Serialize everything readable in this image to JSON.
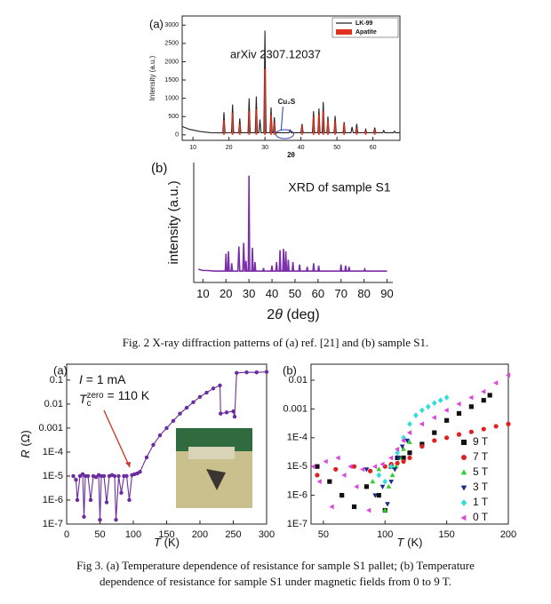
{
  "chart_data": [
    {
      "type": "line",
      "panel_label": "(a)",
      "annotation": "arXiv 2307.12037",
      "peak_label": "Cu₂S",
      "x_label": "2θ",
      "y_label": "Intensity (a.u.)",
      "xlim": [
        7,
        67.5
      ],
      "ylim": [
        -150,
        3250
      ],
      "xticks": [
        10,
        20,
        30,
        40,
        50,
        60
      ],
      "yticks": [
        0,
        500,
        1000,
        1500,
        2000,
        2500,
        3000
      ],
      "legend": "upper right",
      "series": [
        {
          "name": "LK-99",
          "color": "#222222",
          "mark": "line",
          "x": [
            7,
            9,
            12,
            15,
            18.3,
            18.6,
            18.9,
            20.7,
            21,
            21.3,
            22.7,
            23,
            23.3,
            25.3,
            25.6,
            25.9,
            27.3,
            27.6,
            27.9,
            28.3,
            28.6,
            28.9,
            29.7,
            30,
            30.3,
            31.4,
            31.7,
            32,
            32.3,
            32.6,
            32.9,
            36.7,
            37,
            37.3,
            40,
            40.3,
            40.6,
            43.2,
            43.5,
            43.8,
            44.7,
            45,
            45.3,
            45.9,
            46.2,
            46.5,
            47.2,
            47.5,
            47.8,
            49.2,
            49.5,
            49.8,
            51.7,
            52,
            52.3,
            53.9,
            54.2,
            54.5,
            55.2,
            55.5,
            55.8,
            57.7,
            58,
            58.3,
            60.2,
            60.5,
            60.8,
            62.7,
            63,
            63.3,
            65.7,
            66,
            66.3,
            67.5
          ],
          "values": [
            230,
            150,
            90,
            60,
            55,
            620,
            55,
            60,
            830,
            60,
            60,
            450,
            60,
            60,
            1000,
            60,
            60,
            1050,
            60,
            60,
            420,
            60,
            60,
            2850,
            60,
            60,
            750,
            60,
            60,
            480,
            60,
            60,
            130,
            60,
            60,
            300,
            60,
            60,
            650,
            60,
            60,
            720,
            60,
            60,
            900,
            60,
            60,
            500,
            60,
            60,
            520,
            60,
            60,
            350,
            60,
            60,
            220,
            60,
            60,
            300,
            60,
            60,
            150,
            60,
            60,
            200,
            60,
            60,
            120,
            60,
            60,
            100,
            60,
            60
          ]
        },
        {
          "name": "Apatite",
          "color": "#e0301e",
          "mark": "stem",
          "x": [
            18.6,
            21,
            23,
            25.6,
            27.6,
            30,
            31.7,
            32.6,
            40.3,
            43.5,
            45,
            46.2,
            47.5,
            49.5,
            52,
            55.5,
            58,
            60.5
          ],
          "values": [
            400,
            600,
            300,
            650,
            700,
            1800,
            550,
            350,
            250,
            500,
            550,
            650,
            400,
            380,
            280,
            200,
            120,
            150
          ]
        }
      ]
    },
    {
      "type": "line",
      "panel_label": "(b)",
      "annotation": "XRD of sample S1",
      "x_label": {
        "prefix": "2",
        "symbol": "θ",
        "rest": " (deg)"
      },
      "y_label": "intensity (a.u.)",
      "xlim": [
        6,
        92.5
      ],
      "ylim": [
        0,
        100
      ],
      "xticks": [
        10,
        20,
        30,
        40,
        50,
        60,
        70,
        80,
        90
      ],
      "series": [
        {
          "color": "#7b2fa8",
          "mark": "line",
          "x": [
            8,
            10,
            12,
            15,
            18,
            19.7,
            20,
            20.3,
            20.8,
            21.1,
            21.4,
            22.2,
            22.5,
            22.8,
            25.2,
            25.6,
            26,
            27.3,
            27.7,
            28.1,
            28.4,
            28.7,
            29,
            29.7,
            30,
            30.3,
            31.2,
            31.5,
            31.8,
            32.3,
            32.6,
            32.9,
            36,
            36.3,
            36.6,
            39.7,
            40,
            40.3,
            41.7,
            42,
            42.3,
            43.2,
            43.5,
            43.8,
            44.7,
            45,
            45.3,
            45.7,
            46,
            46.3,
            46.8,
            47.1,
            47.4,
            48.8,
            49.1,
            49.4,
            51.7,
            52,
            52.3,
            55,
            55.3,
            55.6,
            57.8,
            58.1,
            58.4,
            60,
            60.3,
            60.6,
            69.7,
            70,
            70.3,
            71.7,
            72,
            72.3,
            73.2,
            73.5,
            73.8,
            80,
            80.3,
            80.6,
            90
          ],
          "values": [
            11,
            10,
            10,
            9.5,
            9.5,
            9.5,
            24,
            9.5,
            9.5,
            26,
            9.5,
            9.5,
            16,
            9.5,
            9.5,
            30,
            9.5,
            9.5,
            33,
            9.5,
            9.5,
            18,
            9.5,
            9.5,
            89,
            9.5,
            9.5,
            29,
            9.5,
            9.5,
            17,
            9.5,
            9.5,
            12,
            9.5,
            9.5,
            14,
            9.5,
            9.5,
            17,
            9.5,
            9.5,
            27,
            9.5,
            9.5,
            28,
            9.5,
            9.5,
            26,
            9.5,
            9.5,
            19,
            9.5,
            9.5,
            17,
            9.5,
            9.5,
            15,
            9.5,
            9.5,
            13,
            9.5,
            9.5,
            16,
            9.5,
            9.5,
            14,
            9.5,
            9.5,
            15,
            9.5,
            9.5,
            14,
            9.5,
            9.5,
            13,
            9.5,
            9.5,
            11,
            9.5,
            9.5
          ]
        }
      ]
    },
    {
      "type": "line",
      "panel_label": "(a)",
      "ylog": true,
      "current": {
        "symbol": "I",
        "rest": " = 1 mA"
      },
      "tc": {
        "symbol": "T",
        "sub": "c",
        "sup": "zero",
        "rest": " = 110 K"
      },
      "x_label": {
        "symbol": "T",
        "rest": " (K)"
      },
      "y_label": {
        "symbol": "R",
        "rest": " (Ω)"
      },
      "xlim": [
        0,
        300
      ],
      "ylim": [
        1e-07,
        0.46
      ],
      "xticks": [
        0,
        50,
        100,
        150,
        200,
        250,
        300
      ],
      "yticks": [
        0.1,
        0.01,
        0.001,
        {
          "value": 0.0001,
          "label": "1E-4"
        },
        {
          "value": 1e-05,
          "label": "1E-5"
        },
        {
          "value": 1e-06,
          "label": "1E-6"
        },
        {
          "value": 1e-07,
          "label": "1E-7"
        }
      ],
      "series": [
        {
          "color": "#6a2ca0",
          "mark": "line+points",
          "marker": "circle",
          "x": [
            10,
            14,
            16,
            20,
            24,
            26,
            28,
            32,
            36,
            40,
            44,
            48,
            50,
            52,
            56,
            60,
            64,
            68,
            72,
            74,
            78,
            82,
            86,
            90,
            94,
            98,
            102,
            106,
            110,
            120,
            130,
            140,
            150,
            160,
            170,
            180,
            190,
            200,
            210,
            220,
            230,
            231,
            240,
            250,
            252,
            255,
            270,
            285,
            300
          ],
          "values": [
            1e-05,
            7e-06,
            1e-06,
            1e-05,
            1.2e-05,
            2e-07,
            1e-05,
            1e-05,
            1e-06,
            1e-05,
            9e-06,
            1.1e-05,
            1.5e-07,
            1e-05,
            1e-05,
            8e-07,
            1e-05,
            1.1e-05,
            1e-05,
            1.5e-07,
            1e-05,
            2e-06,
            1e-05,
            1e-05,
            1e-06,
            1.1e-05,
            1.2e-05,
            1.3e-05,
            1.5e-05,
            6e-05,
            0.0002,
            0.0005,
            0.001,
            0.002,
            0.004,
            0.007,
            0.012,
            0.02,
            0.03,
            0.045,
            0.06,
            0.004,
            0.0045,
            0.005,
            0.003,
            0.2,
            0.21,
            0.21,
            0.22
          ]
        }
      ]
    },
    {
      "type": "scatter",
      "panel_label": "(b)",
      "ylog": true,
      "legend": "center right",
      "x_label": {
        "symbol": "T",
        "rest": " (K)"
      },
      "xlim": [
        40,
        200
      ],
      "ylim": [
        1e-07,
        0.036
      ],
      "xticks": [
        50,
        100,
        150,
        200
      ],
      "yticks": [
        0.01,
        0.001,
        {
          "value": 0.0001,
          "label": "1E-4"
        },
        {
          "value": 1e-05,
          "label": "1E-5"
        },
        {
          "value": 1e-06,
          "label": "1E-6"
        },
        {
          "value": 1e-07,
          "label": "1E-7"
        }
      ],
      "series": [
        {
          "name": "9 T",
          "color": "#111111",
          "marker": "square",
          "x": [
            45,
            55,
            65,
            75,
            85,
            95,
            100,
            105,
            110,
            115,
            120,
            130,
            140,
            150,
            160,
            170,
            180,
            185
          ],
          "values": [
            1e-05,
            3e-06,
            1e-06,
            4e-07,
            2e-06,
            1e-06,
            3e-07,
            1e-05,
            2e-05,
            2e-05,
            3e-05,
            6e-05,
            0.00015,
            0.0004,
            0.0007,
            0.0012,
            0.002,
            0.003
          ]
        },
        {
          "name": "7 T",
          "color": "#e02020",
          "marker": "circle",
          "x": [
            45,
            60,
            75,
            88,
            100,
            105,
            110,
            115,
            120,
            130,
            140,
            150,
            160,
            170,
            180,
            190,
            200
          ],
          "values": [
            5e-06,
            8e-06,
            1e-05,
            7e-06,
            1e-05,
            1.2e-05,
            1.3e-05,
            1.5e-05,
            2e-05,
            5e-05,
            8e-05,
            0.0001,
            0.00013,
            0.00016,
            0.0002,
            0.00025,
            0.0003
          ]
        },
        {
          "name": "5 T",
          "color": "#33cc33",
          "marker": "triangle",
          "x": [
            90,
            95,
            100,
            103,
            106,
            109,
            112,
            115,
            120
          ],
          "values": [
            3e-06,
            8e-06,
            3e-07,
            2e-06,
            5e-06,
            1e-05,
            2e-05,
            4e-05,
            7e-05
          ]
        },
        {
          "name": "3 T",
          "color": "#1a2a8a",
          "marker": "triangle-down",
          "x": [
            85,
            92,
            98,
            102,
            105,
            108,
            111,
            114,
            118
          ],
          "values": [
            8e-06,
            1e-06,
            2e-06,
            5e-07,
            3e-06,
            8e-06,
            2e-05,
            5e-05,
            8e-05
          ]
        },
        {
          "name": "1 T",
          "color": "#33dddd",
          "marker": "diamond",
          "x": [
            95,
            100,
            105,
            110,
            115,
            120,
            125,
            130,
            135,
            140,
            145,
            150
          ],
          "values": [
            5e-06,
            3e-06,
            1e-05,
            3e-05,
            0.0001,
            0.0003,
            0.0006,
            0.0009,
            0.0012,
            0.0016,
            0.002,
            0.0025
          ]
        },
        {
          "name": "0 T",
          "color": "#dd44dd",
          "marker": "triangle-left",
          "x": [
            42,
            47,
            52,
            57,
            62,
            67,
            72,
            77,
            82,
            87,
            92,
            98,
            105,
            110,
            115,
            120,
            130,
            140,
            150,
            160,
            170,
            180,
            190,
            200
          ],
          "values": [
            1e-05,
            3e-06,
            1.5e-05,
            4e-07,
            2e-05,
            5e-06,
            1e-05,
            2e-06,
            8e-06,
            3e-07,
            1e-05,
            1.2e-05,
            2e-05,
            4e-05,
            8e-05,
            0.00015,
            0.0003,
            0.0005,
            0.0009,
            0.0015,
            0.0025,
            0.004,
            0.008,
            0.015
          ]
        }
      ]
    }
  ],
  "captions": [
    "Fig. 2 X-ray diffraction patterns of (a) ref. [21] and (b) sample S1.",
    [
      "Fig 3. (a) Temperature dependence of resistance for sample S1 pallet; (b) Temperature",
      "dependence of resistance for sample S1 under magnetic fields from 0 to 9 T."
    ]
  ]
}
